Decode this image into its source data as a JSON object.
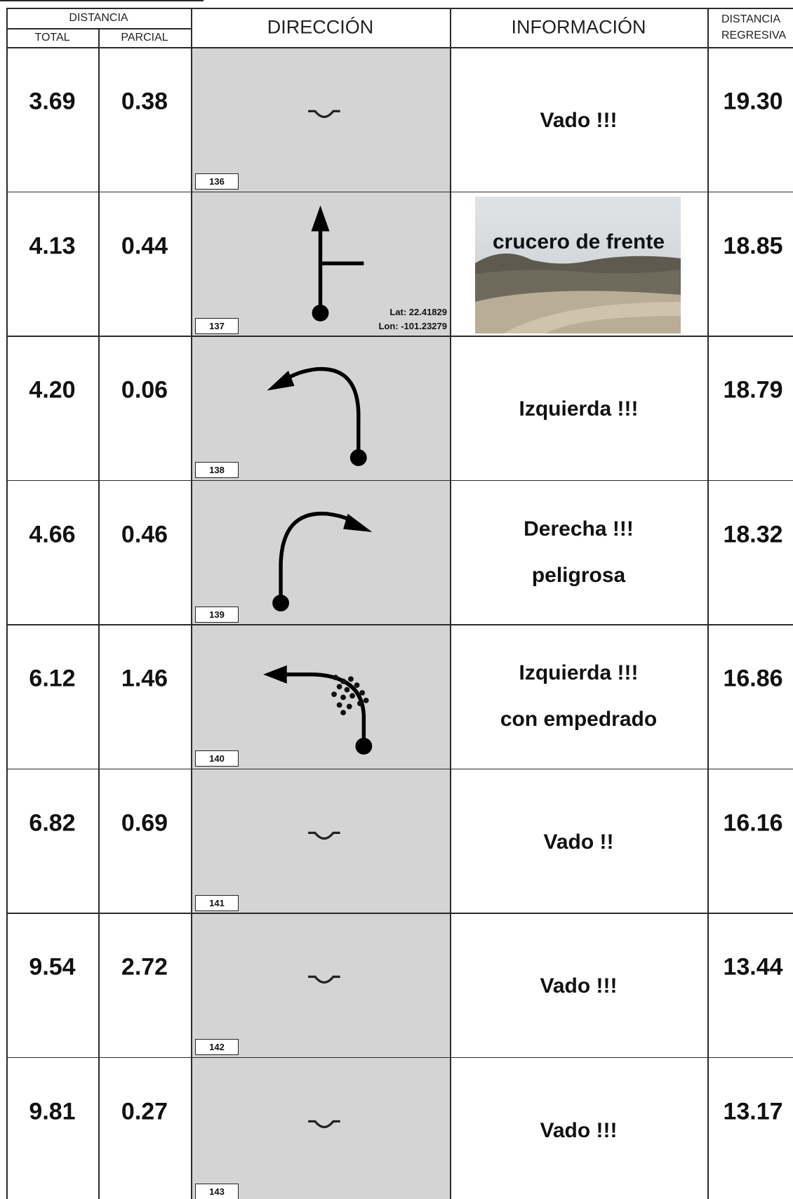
{
  "header": {
    "distancia": "DISTANCIA",
    "total": "TOTAL",
    "parcial": "PARCIAL",
    "direccion": "DIRECCIÓN",
    "informacion": "INFORMACIÓN",
    "regresiva": [
      "DISTANCIA",
      "REGRESIVA"
    ]
  },
  "rows": [
    {
      "total": "3.69",
      "parcial": "0.38",
      "number": "136",
      "info": [
        "Vado !!!"
      ],
      "regresiva": "19.30"
    },
    {
      "total": "4.13",
      "parcial": "0.44",
      "number": "137",
      "coordinates": [
        "Lat: 22.41829",
        "Lon: -101.23279"
      ],
      "photo_caption": "crucero de frente",
      "regresiva": "18.85"
    },
    {
      "total": "4.20",
      "parcial": "0.06",
      "number": "138",
      "info": [
        "Izquierda !!!"
      ],
      "regresiva": "18.79"
    },
    {
      "total": "4.66",
      "parcial": "0.46",
      "number": "139",
      "info": [
        "Derecha !!!",
        "peligrosa"
      ],
      "regresiva": "18.32"
    },
    {
      "total": "6.12",
      "parcial": "1.46",
      "number": "140",
      "info": [
        "Izquierda !!!",
        "con empedrado"
      ],
      "regresiva": "16.86"
    },
    {
      "total": "6.82",
      "parcial": "0.69",
      "number": "141",
      "info": [
        "Vado !!"
      ],
      "regresiva": "16.16"
    },
    {
      "total": "9.54",
      "parcial": "2.72",
      "number": "142",
      "info": [
        "Vado !!!"
      ],
      "regresiva": "13.44"
    },
    {
      "total": "9.81",
      "parcial": "0.27",
      "number": "143",
      "info": [
        "Vado !!!"
      ],
      "regresiva": "13.17"
    }
  ]
}
